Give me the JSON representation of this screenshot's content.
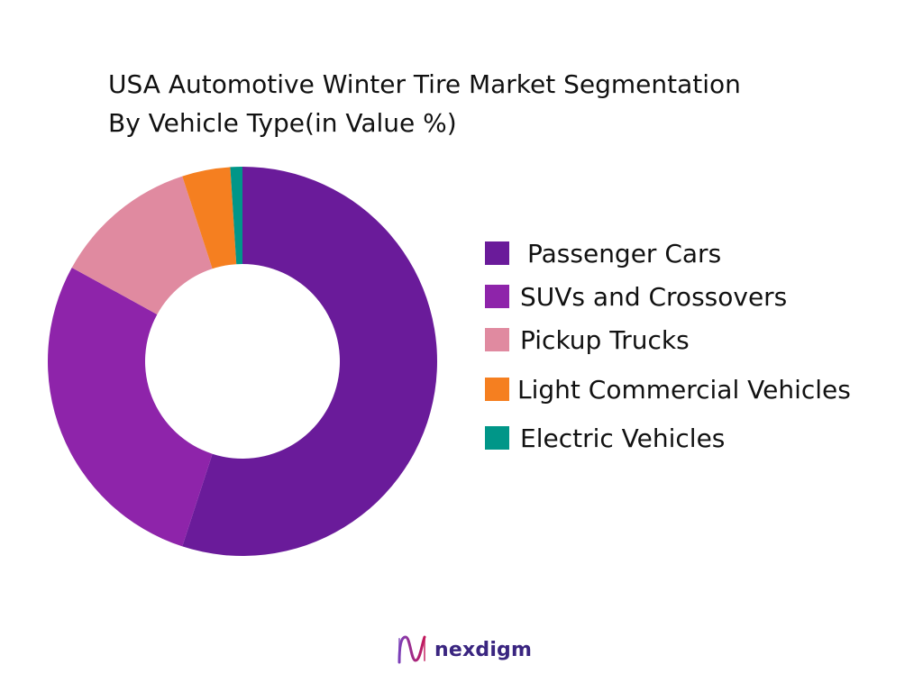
{
  "chart_data": {
    "type": "pie",
    "title_lines": [
      "USA Automotive Winter Tire Market Segmentation",
      "By Vehicle Type(in Value %)"
    ],
    "categories": [
      "Passenger Cars",
      "SUVs and Crossovers",
      "Pickup Trucks",
      "Light Commercial Vehicles",
      "Electric Vehicles"
    ],
    "values": [
      55,
      28,
      12,
      4,
      1
    ],
    "colors": [
      "#6a1b9a",
      "#8e24aa",
      "#e08aa0",
      "#f57f20",
      "#009688"
    ],
    "legend_placement": "right",
    "donut": true
  },
  "brand": {
    "name": "nexdigm"
  }
}
